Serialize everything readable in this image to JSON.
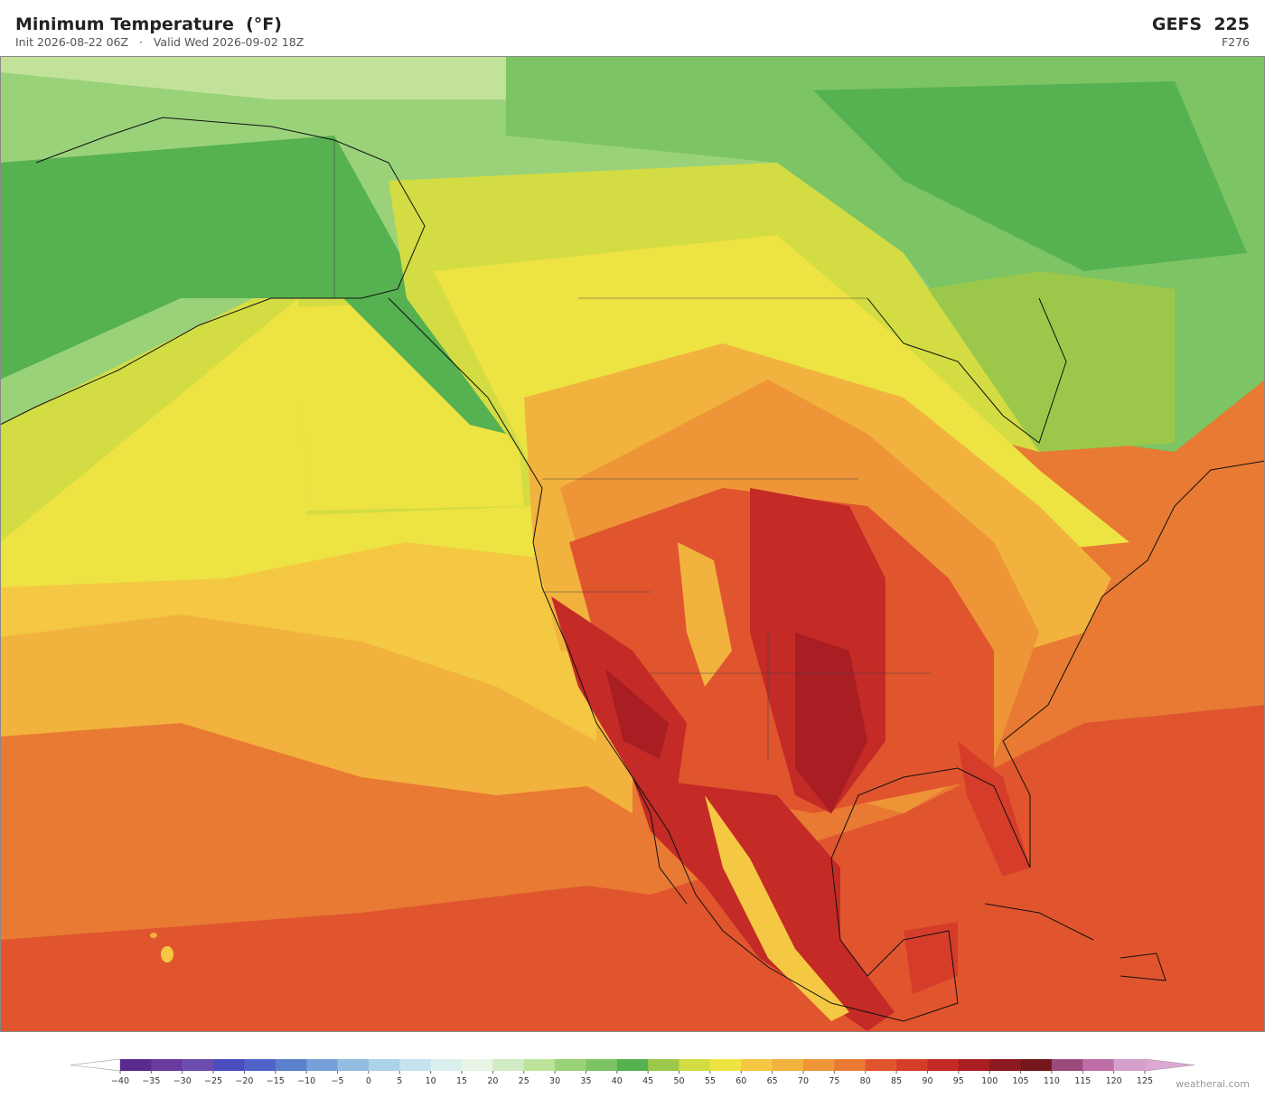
{
  "header": {
    "title": "Minimum Temperature  (°F)",
    "subtitle": "Init 2026-08-22 06Z   ·   Valid Wed 2026-09-02 18Z",
    "model": "GEFS  225",
    "forecast_hour": "F276"
  },
  "colorbar": {
    "under_color": "#ffffff",
    "over_color": "#dda8d4",
    "colors": [
      "#5b2a8e",
      "#6a3a9e",
      "#6e4db0",
      "#4a4cc0",
      "#4f63c8",
      "#5b80cc",
      "#77a0d8",
      "#92bde0",
      "#acd3e8",
      "#c5e3ef",
      "#dcefef",
      "#e8f4e4",
      "#d2ebc4",
      "#bce39a",
      "#9ad27a",
      "#7cc464",
      "#56b151",
      "#9bc84a",
      "#d3dc42",
      "#ede343",
      "#f4c842",
      "#f2b23e",
      "#ee9538",
      "#e87a33",
      "#e0552e",
      "#d63c2a",
      "#c42a26",
      "#a81e22",
      "#8c1a20",
      "#75151c",
      "#9a4a7a",
      "#bd6ea6",
      "#d6a0cc"
    ],
    "ticks": [
      {
        "value": -40,
        "label": "−40"
      },
      {
        "value": -35,
        "label": "−35"
      },
      {
        "value": -30,
        "label": "−30"
      },
      {
        "value": -25,
        "label": "−25"
      },
      {
        "value": -20,
        "label": "−20"
      },
      {
        "value": -15,
        "label": "−15"
      },
      {
        "value": -10,
        "label": "−10"
      },
      {
        "value": -5,
        "label": "−5"
      },
      0,
      5,
      10,
      15,
      20,
      25,
      30,
      35,
      40,
      45,
      50,
      55,
      60,
      65,
      70,
      75,
      80,
      85,
      90,
      95,
      100,
      105,
      110,
      115,
      120,
      125
    ]
  },
  "watermark": "weatherai.com"
}
